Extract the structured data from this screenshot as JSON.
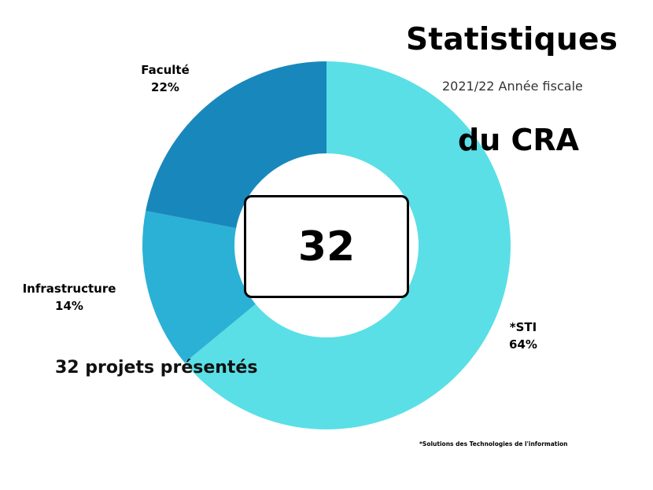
{
  "header": {
    "title_line1": "Statistiques",
    "subtitle": "2021/22 Année fiscale",
    "title_line2": "du CRA"
  },
  "center": {
    "total": "32"
  },
  "caption": "32 projets présentés",
  "footnote": "*Solutions des Technologies de l'information",
  "labels": {
    "faculte": {
      "name": "Faculté",
      "pct": "22%"
    },
    "infrastructure": {
      "name": "Infrastructure",
      "pct": "14%"
    },
    "sti": {
      "name": "*STI",
      "pct": "64%"
    }
  },
  "colors": {
    "sti": "#5ADFE6",
    "infrastructure": "#2BB1D6",
    "faculte": "#1888BC"
  },
  "chart_data": {
    "type": "pie",
    "subtype": "donut",
    "title": "Statistiques du CRA",
    "subtitle": "2021/22 Année fiscale",
    "center_label": "32",
    "categories": [
      "*STI",
      "Infrastructure",
      "Faculté"
    ],
    "values": [
      64,
      14,
      22
    ],
    "units": "%",
    "colors": [
      "#5ADFE6",
      "#2BB1D6",
      "#1888BC"
    ],
    "start_angle_deg": 0,
    "direction": "clockwise",
    "annotations": [
      "32 projets présentés",
      "*Solutions des Technologies de l'information"
    ]
  }
}
